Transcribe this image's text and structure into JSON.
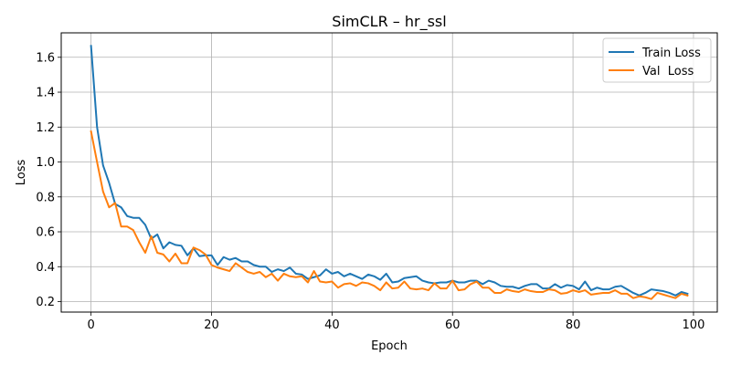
{
  "chart_data": {
    "type": "line",
    "title": "SimCLR – hr_ssl",
    "xlabel": "Epoch",
    "ylabel": "Loss",
    "xlim": [
      -4.95,
      103.95
    ],
    "ylim": [
      0.14,
      1.74
    ],
    "xticks": [
      0,
      20,
      40,
      60,
      80,
      100
    ],
    "yticks": [
      0.2,
      0.4,
      0.6,
      0.8,
      1.0,
      1.2,
      1.4,
      1.6
    ],
    "xtick_labels": [
      "0",
      "20",
      "40",
      "60",
      "80",
      "100"
    ],
    "ytick_labels": [
      "0.2",
      "0.4",
      "0.6",
      "0.8",
      "1.0",
      "1.2",
      "1.4",
      "1.6"
    ],
    "grid": true,
    "legend_position": "top-right",
    "series": [
      {
        "name": "Train Loss",
        "color": "#1f77b4",
        "values": [
          1.665,
          1.2,
          0.98,
          0.88,
          0.76,
          0.74,
          0.69,
          0.68,
          0.68,
          0.64,
          0.56,
          0.585,
          0.505,
          0.54,
          0.525,
          0.52,
          0.465,
          0.505,
          0.46,
          0.465,
          0.465,
          0.41,
          0.455,
          0.44,
          0.45,
          0.43,
          0.43,
          0.41,
          0.4,
          0.4,
          0.37,
          0.385,
          0.375,
          0.395,
          0.36,
          0.355,
          0.33,
          0.34,
          0.35,
          0.385,
          0.36,
          0.37,
          0.345,
          0.36,
          0.345,
          0.33,
          0.355,
          0.345,
          0.325,
          0.36,
          0.31,
          0.315,
          0.335,
          0.34,
          0.345,
          0.32,
          0.31,
          0.305,
          0.31,
          0.31,
          0.32,
          0.31,
          0.31,
          0.32,
          0.32,
          0.3,
          0.32,
          0.31,
          0.29,
          0.285,
          0.285,
          0.275,
          0.29,
          0.3,
          0.3,
          0.275,
          0.275,
          0.3,
          0.28,
          0.295,
          0.29,
          0.27,
          0.315,
          0.265,
          0.28,
          0.27,
          0.27,
          0.285,
          0.29,
          0.27,
          0.25,
          0.235,
          0.25,
          0.27,
          0.265,
          0.26,
          0.25,
          0.235,
          0.255,
          0.245
        ]
      },
      {
        "name": "Val  Loss",
        "color": "#ff7f0e",
        "values": [
          1.175,
          1.0,
          0.83,
          0.74,
          0.765,
          0.63,
          0.63,
          0.61,
          0.54,
          0.48,
          0.575,
          0.48,
          0.47,
          0.43,
          0.475,
          0.42,
          0.42,
          0.51,
          0.495,
          0.47,
          0.41,
          0.395,
          0.385,
          0.375,
          0.42,
          0.395,
          0.37,
          0.36,
          0.37,
          0.34,
          0.36,
          0.32,
          0.36,
          0.345,
          0.34,
          0.345,
          0.31,
          0.375,
          0.315,
          0.31,
          0.315,
          0.28,
          0.3,
          0.305,
          0.29,
          0.31,
          0.305,
          0.29,
          0.265,
          0.31,
          0.275,
          0.28,
          0.315,
          0.275,
          0.27,
          0.275,
          0.265,
          0.305,
          0.275,
          0.275,
          0.32,
          0.265,
          0.27,
          0.3,
          0.315,
          0.28,
          0.28,
          0.25,
          0.25,
          0.27,
          0.26,
          0.255,
          0.27,
          0.26,
          0.255,
          0.255,
          0.27,
          0.265,
          0.245,
          0.25,
          0.265,
          0.255,
          0.265,
          0.24,
          0.245,
          0.25,
          0.25,
          0.265,
          0.245,
          0.245,
          0.22,
          0.23,
          0.225,
          0.215,
          0.25,
          0.24,
          0.23,
          0.22,
          0.245,
          0.235
        ]
      }
    ]
  }
}
